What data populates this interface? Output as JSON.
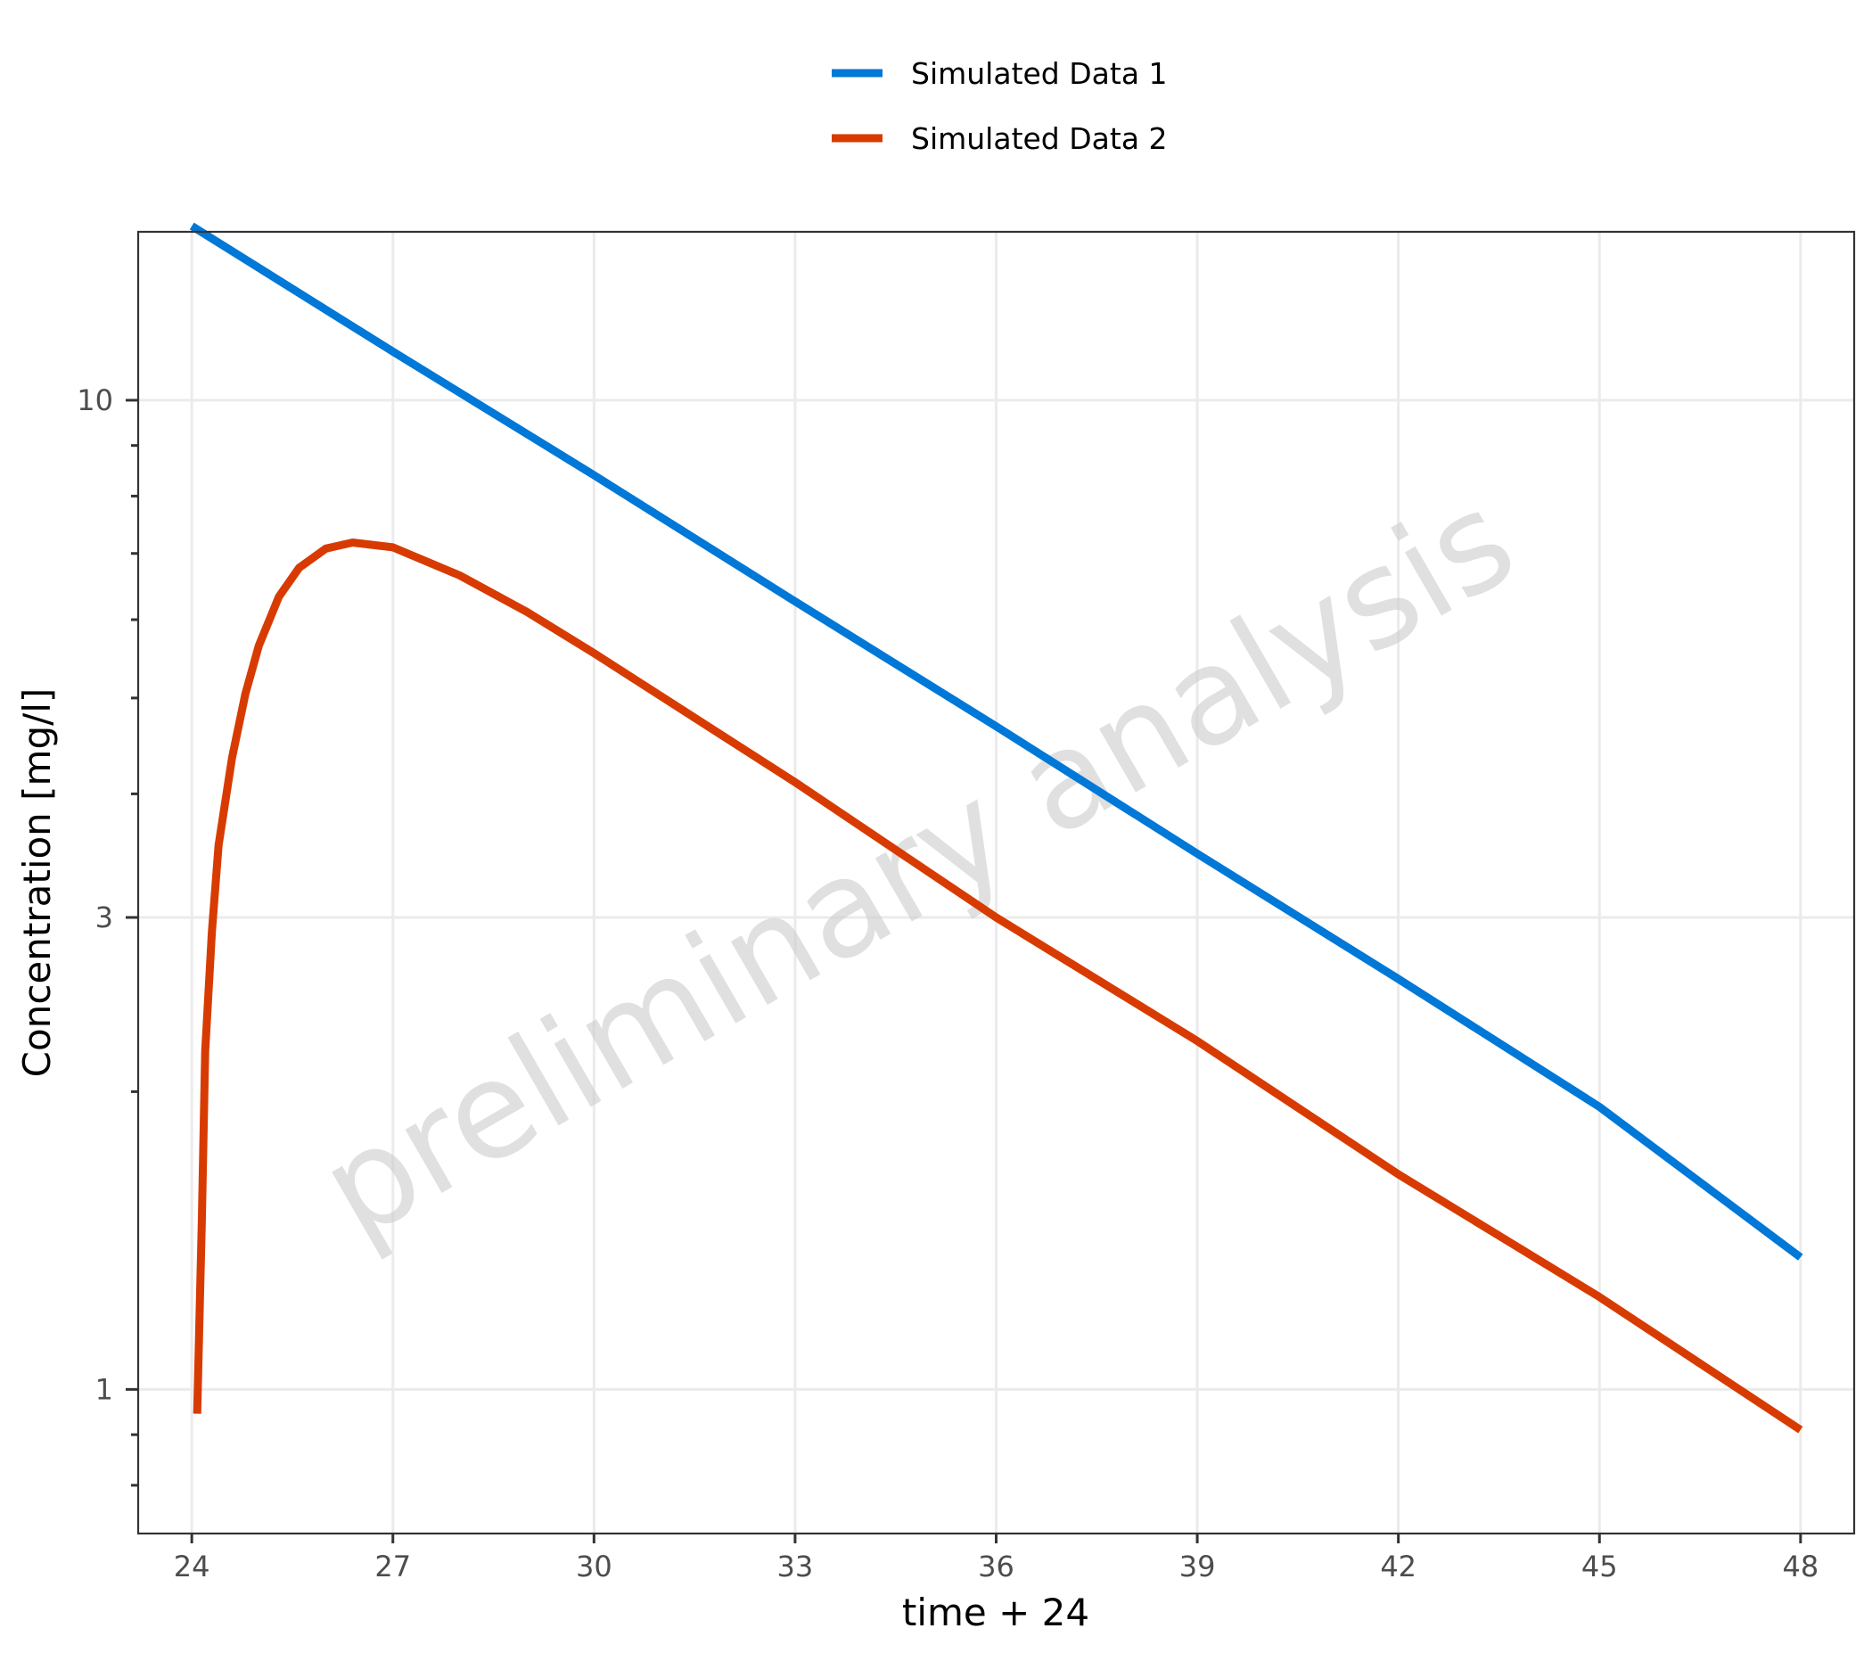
{
  "chart_data": {
    "type": "line",
    "title": "",
    "xlabel": "time + 24",
    "ylabel": "Concentration [mg/l]",
    "y_scale": "log",
    "xlim": [
      23.2,
      48.8
    ],
    "ylim": [
      0.715,
      14.8
    ],
    "x_ticks": [
      24,
      27,
      30,
      33,
      36,
      39,
      42,
      45,
      48
    ],
    "x_tick_labels": [
      "24",
      "27",
      "30",
      "33",
      "36",
      "39",
      "42",
      "45",
      "48"
    ],
    "y_ticks": [
      1,
      3,
      10
    ],
    "y_tick_labels": [
      "1",
      "3",
      "10"
    ],
    "y_minor_ticks": [
      0.8,
      0.9,
      2,
      4,
      5,
      6,
      7,
      8,
      9
    ],
    "grid": true,
    "legend_position": "top",
    "watermark": "preliminary analysis",
    "series": [
      {
        "name": "Simulated Data 1",
        "color": "#0078D7",
        "x": [
          24,
          27,
          30,
          33,
          36,
          39,
          42,
          45,
          48
        ],
        "y": [
          15.0,
          11.2,
          8.4,
          6.26,
          4.68,
          3.48,
          2.6,
          1.93,
          1.36
        ]
      },
      {
        "name": "Simulated Data 2",
        "color": "#D83B01",
        "x": [
          24.08,
          24.15,
          24.2,
          24.3,
          24.4,
          24.6,
          24.8,
          25.0,
          25.3,
          25.6,
          26.0,
          26.4,
          27.0,
          28.0,
          29.0,
          30.0,
          33.0,
          36.0,
          39.0,
          42.0,
          45.0,
          48.0
        ],
        "y": [
          0.945,
          1.48,
          2.2,
          2.9,
          3.55,
          4.35,
          5.05,
          5.65,
          6.33,
          6.77,
          7.08,
          7.18,
          7.1,
          6.65,
          6.11,
          5.55,
          4.11,
          3.0,
          2.25,
          1.65,
          1.24,
          0.91
        ]
      }
    ]
  }
}
